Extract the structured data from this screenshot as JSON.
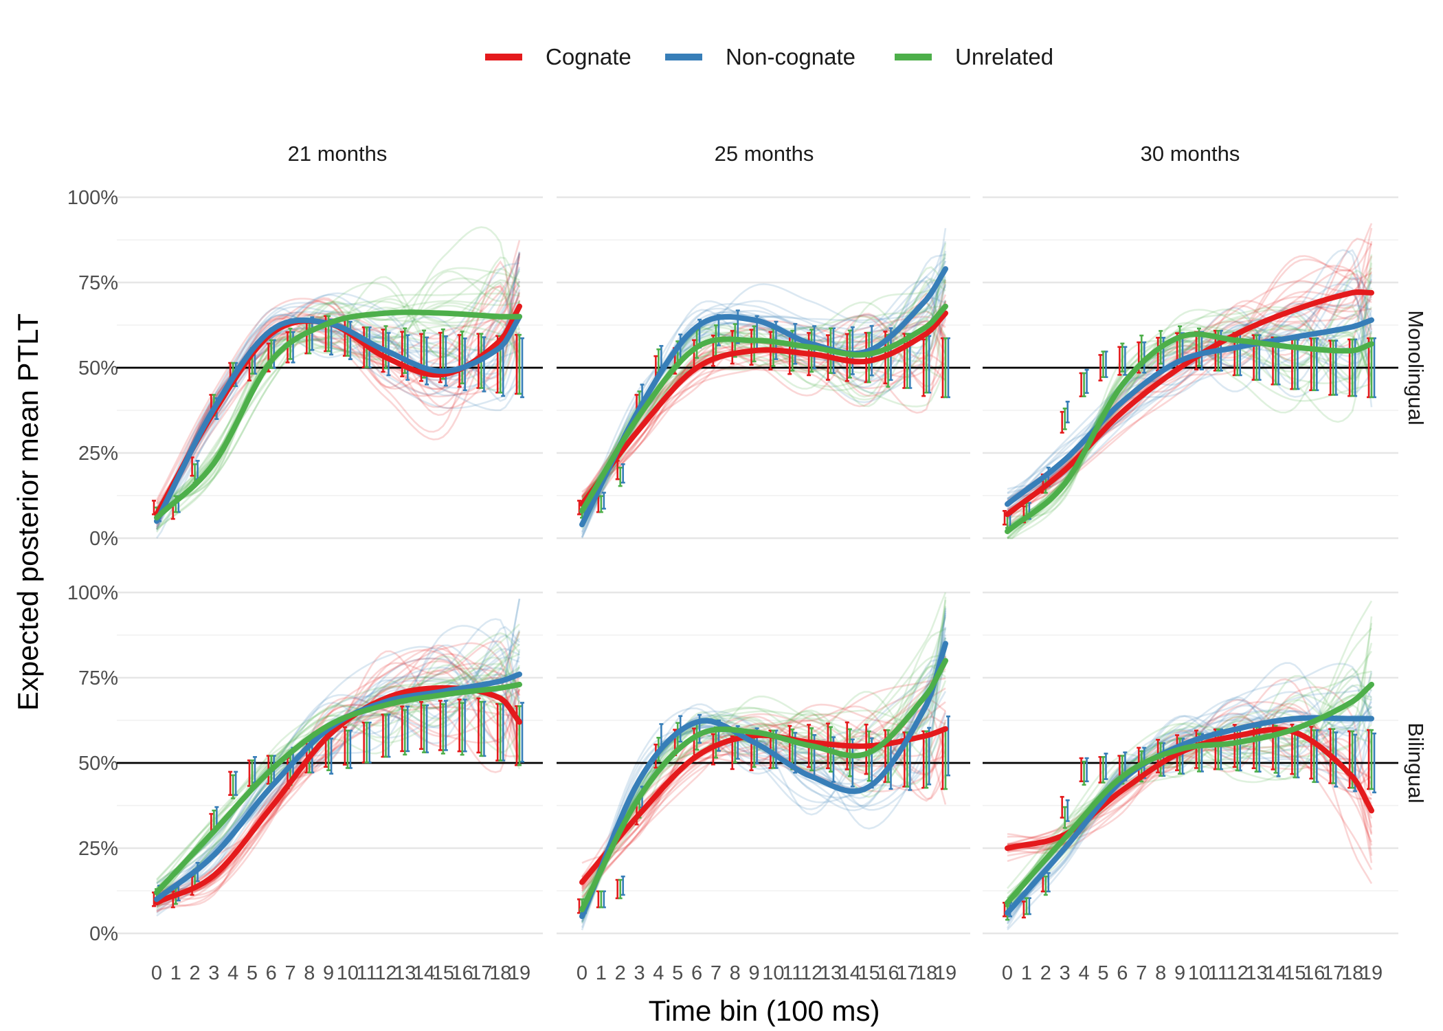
{
  "chart_data": {
    "type": "line",
    "xlabel": "Time bin (100 ms)",
    "ylabel": "Expected posterior mean PTLT",
    "ylim": [
      0,
      100
    ],
    "x_ticks": [
      "0",
      "1",
      "2",
      "3",
      "4",
      "5",
      "6",
      "7",
      "8",
      "9",
      "10",
      "11",
      "12",
      "13",
      "14",
      "15",
      "16",
      "17",
      "18",
      "19"
    ],
    "y_ticks": [
      "0%",
      "25%",
      "50%",
      "75%",
      "100%"
    ],
    "reference_line": 50,
    "legend": {
      "position": "top",
      "entries": [
        {
          "name": "Cognate",
          "color": "#E41A1C"
        },
        {
          "name": "Non-cognate",
          "color": "#377EB8"
        },
        {
          "name": "Unrelated",
          "color": "#4DAF4A"
        }
      ]
    },
    "facet_columns": [
      "21 months",
      "25 months",
      "30 months"
    ],
    "facet_rows": [
      "Monolingual",
      "Bilingual"
    ],
    "panels": [
      {
        "age": "21 months",
        "group": "Monolingual",
        "mean_curves": [
          {
            "name": "Cognate",
            "x": [
              0,
              3,
              6,
              9,
              12,
              15,
              18,
              19
            ],
            "y": [
              7,
              37,
              60,
              63,
              53,
              48,
              58,
              68
            ]
          },
          {
            "name": "Non-cognate",
            "x": [
              0,
              3,
              6,
              9,
              12,
              15,
              18,
              19
            ],
            "y": [
              5,
              38,
              61,
              63,
              55,
              49,
              56,
              65
            ]
          },
          {
            "name": "Unrelated",
            "x": [
              0,
              3,
              6,
              9,
              12,
              15,
              18,
              19
            ],
            "y": [
              6,
              22,
              52,
              63,
              66,
              66,
              65,
              65
            ]
          }
        ],
        "observed": [
          {
            "name": "Cognate",
            "y": [
              9,
              8,
              21,
              39,
              48,
              50,
              53,
              56,
              59,
              60,
              59,
              56,
              55,
              54,
              53,
              53,
              52,
              52,
              51,
              51
            ]
          },
          {
            "name": "Non-cognate",
            "y": [
              7,
              10,
              20,
              38,
              48,
              52,
              54,
              56,
              60,
              59,
              58,
              56,
              54,
              53,
              52,
              52,
              51,
              51,
              50,
              50
            ]
          },
          {
            "name": "Unrelated",
            "y": [
              7,
              10,
              19,
              39,
              48,
              52,
              54,
              57,
              59,
              60,
              59,
              56,
              56,
              55,
              54,
              54,
              53,
              52,
              51,
              51
            ]
          }
        ]
      },
      {
        "age": "25 months",
        "group": "Monolingual",
        "mean_curves": [
          {
            "name": "Cognate",
            "x": [
              0,
              3,
              6,
              9,
              12,
              15,
              18,
              19
            ],
            "y": [
              10,
              32,
              50,
              55,
              54,
              52,
              60,
              66
            ]
          },
          {
            "name": "Non-cognate",
            "x": [
              0,
              3,
              6,
              9,
              12,
              15,
              18,
              19
            ],
            "y": [
              4,
              38,
              62,
              64,
              57,
              55,
              70,
              79
            ]
          },
          {
            "name": "Unrelated",
            "x": [
              0,
              3,
              6,
              9,
              12,
              15,
              18,
              19
            ],
            "y": [
              8,
              36,
              56,
              58,
              56,
              54,
              62,
              68
            ]
          }
        ],
        "observed": [
          {
            "name": "Cognate",
            "y": [
              9,
              10,
              20,
              39,
              50,
              52,
              54,
              55,
              56,
              56,
              55,
              54,
              54,
              53,
              53,
              53,
              53,
              52,
              50,
              50
            ]
          },
          {
            "name": "Non-cognate",
            "y": [
              8,
              11,
              19,
              42,
              53,
              56,
              60,
              61,
              62,
              60,
              58,
              57,
              56,
              55,
              55,
              55,
              54,
              52,
              51,
              50
            ]
          },
          {
            "name": "Unrelated",
            "y": [
              8,
              10,
              18,
              40,
              52,
              54,
              57,
              58,
              58,
              57,
              56,
              55,
              55,
              55,
              54,
              53,
              52,
              52,
              51,
              50
            ]
          }
        ]
      },
      {
        "age": "30 months",
        "group": "Monolingual",
        "mean_curves": [
          {
            "name": "Cognate",
            "x": [
              0,
              3,
              6,
              9,
              12,
              15,
              18,
              19
            ],
            "y": [
              7,
              20,
              37,
              50,
              60,
              67,
              72,
              72
            ]
          },
          {
            "name": "Non-cognate",
            "x": [
              0,
              3,
              6,
              9,
              12,
              15,
              18,
              19
            ],
            "y": [
              10,
              23,
              40,
              52,
              56,
              59,
              62,
              64
            ]
          },
          {
            "name": "Unrelated",
            "x": [
              0,
              3,
              6,
              9,
              12,
              15,
              18,
              19
            ],
            "y": [
              2,
              16,
              45,
              59,
              58,
              56,
              55,
              57
            ]
          }
        ],
        "observed": [
          {
            "name": "Cognate",
            "y": [
              6,
              7,
              16,
              34,
              45,
              50,
              52,
              53,
              54,
              55,
              55,
              55,
              54,
              53,
              52,
              51,
              51,
              50,
              50,
              50
            ]
          },
          {
            "name": "Non-cognate",
            "y": [
              5,
              8,
              18,
              37,
              46,
              51,
              52,
              53,
              54,
              55,
              55,
              55,
              54,
              53,
              52,
              51,
              51,
              50,
              50,
              50
            ]
          },
          {
            "name": "Unrelated",
            "y": [
              5,
              8,
              16,
              35,
              45,
              51,
              53,
              55,
              56,
              57,
              56,
              55,
              54,
              53,
              52,
              51,
              51,
              50,
              50,
              50
            ]
          }
        ]
      },
      {
        "age": "21 months",
        "group": "Bilingual",
        "mean_curves": [
          {
            "name": "Cognate",
            "x": [
              0,
              3,
              6,
              9,
              12,
              15,
              18,
              19
            ],
            "y": [
              9,
              17,
              37,
              58,
              69,
              72,
              69,
              62
            ]
          },
          {
            "name": "Non-cognate",
            "x": [
              0,
              3,
              6,
              9,
              12,
              15,
              18,
              19
            ],
            "y": [
              10,
              23,
              43,
              60,
              68,
              71,
              74,
              76
            ]
          },
          {
            "name": "Unrelated",
            "x": [
              0,
              3,
              6,
              9,
              12,
              15,
              18,
              19
            ],
            "y": [
              12,
              30,
              48,
              61,
              67,
              70,
              72,
              73
            ]
          }
        ],
        "observed": [
          {
            "name": "Cognate",
            "y": [
              10,
              10,
              14,
              32,
              44,
              47,
              48,
              47,
              52,
              54,
              55,
              56,
              58,
              60,
              61,
              61,
              61,
              61,
              59,
              58
            ]
          },
          {
            "name": "Non-cognate",
            "y": [
              12,
              12,
              18,
              34,
              44,
              48,
              48,
              50,
              52,
              52,
              54,
              56,
              58,
              60,
              60,
              61,
              61,
              60,
              59,
              59
            ]
          },
          {
            "name": "Unrelated",
            "y": [
              11,
              11,
              16,
              33,
              43,
              47,
              48,
              48,
              52,
              53,
              54,
              56,
              58,
              59,
              60,
              60,
              60,
              60,
              59,
              58
            ]
          }
        ]
      },
      {
        "age": "25 months",
        "group": "Bilingual",
        "mean_curves": [
          {
            "name": "Cognate",
            "x": [
              0,
              3,
              6,
              9,
              12,
              15,
              18,
              19
            ],
            "y": [
              15,
              35,
              52,
              58,
              56,
              55,
              58,
              60
            ]
          },
          {
            "name": "Non-cognate",
            "x": [
              0,
              3,
              6,
              9,
              12,
              15,
              18,
              19
            ],
            "y": [
              5,
              45,
              62,
              56,
              46,
              43,
              67,
              85
            ]
          },
          {
            "name": "Unrelated",
            "x": [
              0,
              3,
              6,
              9,
              12,
              15,
              18,
              19
            ],
            "y": [
              7,
              40,
              58,
              59,
              55,
              53,
              70,
              80
            ]
          }
        ],
        "observed": [
          {
            "name": "Cognate",
            "y": [
              8,
              10,
              13,
              35,
              52,
              56,
              56,
              54,
              53,
              53,
              54,
              55,
              55,
              55,
              55,
              54,
              52,
              51,
              51,
              51
            ]
          },
          {
            "name": "Non-cognate",
            "y": [
              8,
              10,
              14,
              40,
              58,
              60,
              60,
              58,
              56,
              55,
              54,
              53,
              52,
              51,
              50,
              50,
              50,
              50,
              52,
              55
            ]
          },
          {
            "name": "Unrelated",
            "y": [
              8,
              10,
              13,
              37,
              54,
              58,
              58,
              56,
              55,
              54,
              54,
              54,
              54,
              54,
              53,
              52,
              52,
              51,
              51,
              51
            ]
          }
        ]
      },
      {
        "age": "30 months",
        "group": "Bilingual",
        "mean_curves": [
          {
            "name": "Cognate",
            "x": [
              0,
              3,
              6,
              9,
              12,
              15,
              18,
              19
            ],
            "y": [
              25,
              29,
              42,
              53,
              58,
              59,
              46,
              36
            ]
          },
          {
            "name": "Non-cognate",
            "x": [
              0,
              3,
              6,
              9,
              12,
              15,
              18,
              19
            ],
            "y": [
              6,
              25,
              45,
              55,
              60,
              63,
              63,
              63
            ]
          },
          {
            "name": "Unrelated",
            "x": [
              0,
              3,
              6,
              9,
              12,
              15,
              18,
              19
            ],
            "y": [
              9,
              28,
              46,
              54,
              56,
              60,
              68,
              73
            ]
          }
        ],
        "observed": [
          {
            "name": "Cognate",
            "y": [
              7,
              7,
              15,
              37,
              48,
              48,
              48,
              50,
              52,
              53,
              54,
              54,
              55,
              55,
              55,
              54,
              53,
              52,
              51,
              51
            ]
          },
          {
            "name": "Non-cognate",
            "y": [
              7,
              8,
              15,
              36,
              48,
              49,
              49,
              50,
              51,
              52,
              53,
              54,
              54,
              54,
              53,
              53,
              52,
              51,
              50,
              50
            ]
          },
          {
            "name": "Unrelated",
            "y": [
              6,
              8,
              14,
              34,
              47,
              48,
              48,
              49,
              51,
              52,
              53,
              54,
              54,
              54,
              54,
              53,
              52,
              52,
              51,
              51
            ]
          }
        ]
      }
    ]
  }
}
